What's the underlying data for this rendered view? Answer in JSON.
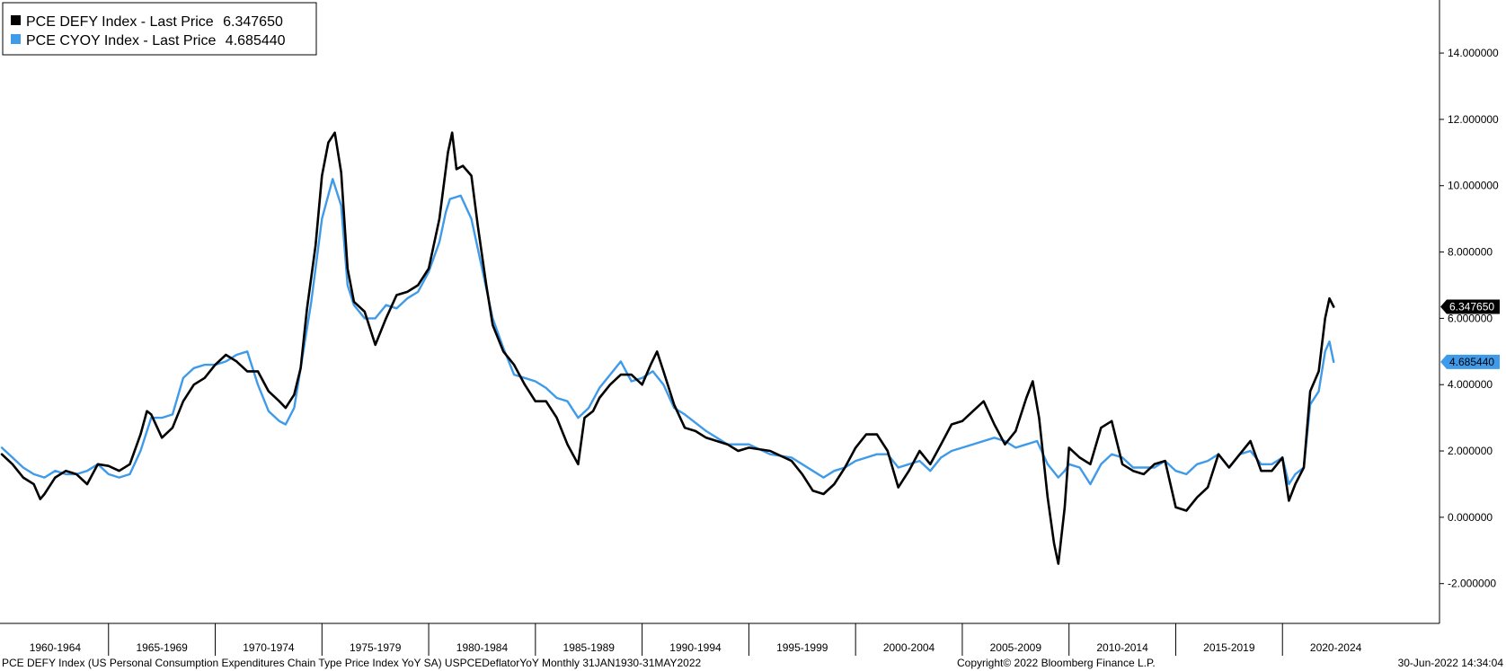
{
  "chart_data": {
    "type": "line",
    "x_unit": "year",
    "x_range": [
      1960,
      2025
    ],
    "ylim": [
      -3.2,
      15.6
    ],
    "y_ticks": [
      "14.000000",
      "12.000000",
      "10.000000",
      "8.000000",
      "6.000000",
      "4.000000",
      "2.000000",
      "0.000000",
      "-2.000000"
    ],
    "y_tick_values": [
      14,
      12,
      10,
      8,
      6,
      4,
      2,
      0,
      -2
    ],
    "x_tick_labels": [
      "1960-1964",
      "1965-1969",
      "1970-1974",
      "1975-1979",
      "1980-1984",
      "1985-1989",
      "1990-1994",
      "1995-1999",
      "2000-2004",
      "2005-2009",
      "2010-2014",
      "2015-2019",
      "2020-2024"
    ],
    "x_tick_starts": [
      1960,
      1965,
      1970,
      1975,
      1980,
      1985,
      1990,
      1995,
      2000,
      2005,
      2010,
      2015,
      2020
    ],
    "legend_position": "top-left",
    "series": [
      {
        "name": "PCE DEFY Index",
        "legend_label": "PCE DEFY Index - Last Price",
        "last_price": "6.347650",
        "color": "#000000",
        "points": [
          [
            1960.0,
            1.9
          ],
          [
            1960.5,
            1.6
          ],
          [
            1961.0,
            1.2
          ],
          [
            1961.5,
            1.0
          ],
          [
            1961.8,
            0.55
          ],
          [
            1962.0,
            0.7
          ],
          [
            1962.5,
            1.2
          ],
          [
            1963.0,
            1.4
          ],
          [
            1963.5,
            1.3
          ],
          [
            1964.0,
            1.0
          ],
          [
            1964.5,
            1.6
          ],
          [
            1965.0,
            1.55
          ],
          [
            1965.5,
            1.4
          ],
          [
            1966.0,
            1.6
          ],
          [
            1966.5,
            2.5
          ],
          [
            1966.8,
            3.2
          ],
          [
            1967.0,
            3.1
          ],
          [
            1967.5,
            2.4
          ],
          [
            1968.0,
            2.7
          ],
          [
            1968.5,
            3.5
          ],
          [
            1969.0,
            4.0
          ],
          [
            1969.5,
            4.2
          ],
          [
            1970.0,
            4.6
          ],
          [
            1970.5,
            4.9
          ],
          [
            1971.0,
            4.7
          ],
          [
            1971.5,
            4.4
          ],
          [
            1972.0,
            4.4
          ],
          [
            1972.5,
            3.8
          ],
          [
            1973.0,
            3.5
          ],
          [
            1973.3,
            3.3
          ],
          [
            1973.7,
            3.7
          ],
          [
            1974.0,
            4.5
          ],
          [
            1974.3,
            6.3
          ],
          [
            1974.7,
            8.2
          ],
          [
            1975.0,
            10.3
          ],
          [
            1975.3,
            11.3
          ],
          [
            1975.6,
            11.6
          ],
          [
            1975.9,
            10.4
          ],
          [
            1976.2,
            7.5
          ],
          [
            1976.5,
            6.5
          ],
          [
            1977.0,
            6.2
          ],
          [
            1977.5,
            5.2
          ],
          [
            1978.0,
            6.0
          ],
          [
            1978.5,
            6.7
          ],
          [
            1979.0,
            6.8
          ],
          [
            1979.5,
            7.0
          ],
          [
            1980.0,
            7.5
          ],
          [
            1980.5,
            9.0
          ],
          [
            1980.9,
            11.0
          ],
          [
            1981.1,
            11.6
          ],
          [
            1981.3,
            10.5
          ],
          [
            1981.6,
            10.6
          ],
          [
            1982.0,
            10.3
          ],
          [
            1982.3,
            8.8
          ],
          [
            1982.7,
            7.0
          ],
          [
            1983.0,
            5.8
          ],
          [
            1983.5,
            5.0
          ],
          [
            1984.0,
            4.6
          ],
          [
            1984.5,
            4.0
          ],
          [
            1985.0,
            3.5
          ],
          [
            1985.5,
            3.5
          ],
          [
            1986.0,
            3.0
          ],
          [
            1986.5,
            2.2
          ],
          [
            1987.0,
            1.6
          ],
          [
            1987.3,
            3.0
          ],
          [
            1987.7,
            3.2
          ],
          [
            1988.0,
            3.6
          ],
          [
            1988.5,
            4.0
          ],
          [
            1989.0,
            4.3
          ],
          [
            1989.5,
            4.3
          ],
          [
            1990.0,
            4.0
          ],
          [
            1990.4,
            4.6
          ],
          [
            1990.7,
            5.0
          ],
          [
            1991.0,
            4.4
          ],
          [
            1991.5,
            3.4
          ],
          [
            1992.0,
            2.7
          ],
          [
            1992.5,
            2.6
          ],
          [
            1993.0,
            2.4
          ],
          [
            1994.0,
            2.2
          ],
          [
            1994.5,
            2.0
          ],
          [
            1995.0,
            2.1
          ],
          [
            1996.0,
            2.0
          ],
          [
            1997.0,
            1.7
          ],
          [
            1997.5,
            1.3
          ],
          [
            1998.0,
            0.8
          ],
          [
            1998.5,
            0.7
          ],
          [
            1999.0,
            1.0
          ],
          [
            1999.5,
            1.5
          ],
          [
            2000.0,
            2.1
          ],
          [
            2000.5,
            2.5
          ],
          [
            2001.0,
            2.5
          ],
          [
            2001.5,
            2.0
          ],
          [
            2002.0,
            0.9
          ],
          [
            2002.5,
            1.4
          ],
          [
            2003.0,
            2.0
          ],
          [
            2003.5,
            1.6
          ],
          [
            2004.0,
            2.2
          ],
          [
            2004.5,
            2.8
          ],
          [
            2005.0,
            2.9
          ],
          [
            2005.5,
            3.2
          ],
          [
            2006.0,
            3.5
          ],
          [
            2006.5,
            2.8
          ],
          [
            2007.0,
            2.2
          ],
          [
            2007.5,
            2.6
          ],
          [
            2008.0,
            3.6
          ],
          [
            2008.3,
            4.1
          ],
          [
            2008.6,
            3.0
          ],
          [
            2009.0,
            0.6
          ],
          [
            2009.3,
            -0.8
          ],
          [
            2009.5,
            -1.4
          ],
          [
            2009.8,
            0.3
          ],
          [
            2010.0,
            2.1
          ],
          [
            2010.5,
            1.8
          ],
          [
            2011.0,
            1.6
          ],
          [
            2011.5,
            2.7
          ],
          [
            2012.0,
            2.9
          ],
          [
            2012.5,
            1.6
          ],
          [
            2013.0,
            1.4
          ],
          [
            2013.5,
            1.3
          ],
          [
            2014.0,
            1.6
          ],
          [
            2014.5,
            1.7
          ],
          [
            2015.0,
            0.3
          ],
          [
            2015.5,
            0.2
          ],
          [
            2016.0,
            0.6
          ],
          [
            2016.5,
            0.9
          ],
          [
            2017.0,
            1.9
          ],
          [
            2017.5,
            1.5
          ],
          [
            2018.0,
            1.9
          ],
          [
            2018.5,
            2.3
          ],
          [
            2019.0,
            1.4
          ],
          [
            2019.5,
            1.4
          ],
          [
            2020.0,
            1.8
          ],
          [
            2020.3,
            0.5
          ],
          [
            2020.6,
            1.0
          ],
          [
            2021.0,
            1.5
          ],
          [
            2021.3,
            3.8
          ],
          [
            2021.7,
            4.4
          ],
          [
            2022.0,
            6.0
          ],
          [
            2022.2,
            6.6
          ],
          [
            2022.4,
            6.35
          ]
        ]
      },
      {
        "name": "PCE CYOY Index",
        "legend_label": "PCE CYOY Index - Last Price",
        "last_price": "4.685440",
        "color": "#3f9be9",
        "points": [
          [
            1960.0,
            2.1
          ],
          [
            1960.5,
            1.8
          ],
          [
            1961.0,
            1.5
          ],
          [
            1961.5,
            1.3
          ],
          [
            1962.0,
            1.2
          ],
          [
            1962.5,
            1.4
          ],
          [
            1963.0,
            1.3
          ],
          [
            1963.5,
            1.3
          ],
          [
            1964.0,
            1.4
          ],
          [
            1964.5,
            1.6
          ],
          [
            1965.0,
            1.3
          ],
          [
            1965.5,
            1.2
          ],
          [
            1966.0,
            1.3
          ],
          [
            1966.5,
            2.0
          ],
          [
            1967.0,
            3.0
          ],
          [
            1967.5,
            3.0
          ],
          [
            1968.0,
            3.1
          ],
          [
            1968.5,
            4.2
          ],
          [
            1969.0,
            4.5
          ],
          [
            1969.5,
            4.6
          ],
          [
            1970.0,
            4.6
          ],
          [
            1970.5,
            4.7
          ],
          [
            1971.0,
            4.9
          ],
          [
            1971.5,
            5.0
          ],
          [
            1972.0,
            4.0
          ],
          [
            1972.5,
            3.2
          ],
          [
            1973.0,
            2.9
          ],
          [
            1973.3,
            2.8
          ],
          [
            1973.7,
            3.3
          ],
          [
            1974.0,
            4.5
          ],
          [
            1974.5,
            6.5
          ],
          [
            1975.0,
            9.0
          ],
          [
            1975.5,
            10.2
          ],
          [
            1975.9,
            9.4
          ],
          [
            1976.2,
            7.0
          ],
          [
            1976.5,
            6.4
          ],
          [
            1977.0,
            6.0
          ],
          [
            1977.5,
            6.0
          ],
          [
            1978.0,
            6.4
          ],
          [
            1978.5,
            6.3
          ],
          [
            1979.0,
            6.6
          ],
          [
            1979.5,
            6.8
          ],
          [
            1980.0,
            7.4
          ],
          [
            1980.5,
            8.3
          ],
          [
            1980.8,
            9.2
          ],
          [
            1981.0,
            9.6
          ],
          [
            1981.5,
            9.7
          ],
          [
            1982.0,
            9.0
          ],
          [
            1982.5,
            7.5
          ],
          [
            1983.0,
            6.0
          ],
          [
            1983.5,
            5.1
          ],
          [
            1984.0,
            4.3
          ],
          [
            1984.5,
            4.2
          ],
          [
            1985.0,
            4.1
          ],
          [
            1985.5,
            3.9
          ],
          [
            1986.0,
            3.6
          ],
          [
            1986.5,
            3.5
          ],
          [
            1987.0,
            3.0
          ],
          [
            1987.5,
            3.3
          ],
          [
            1988.0,
            3.9
          ],
          [
            1988.5,
            4.3
          ],
          [
            1989.0,
            4.7
          ],
          [
            1989.5,
            4.1
          ],
          [
            1990.0,
            4.2
          ],
          [
            1990.5,
            4.4
          ],
          [
            1991.0,
            4.0
          ],
          [
            1991.5,
            3.3
          ],
          [
            1992.0,
            3.1
          ],
          [
            1993.0,
            2.6
          ],
          [
            1994.0,
            2.2
          ],
          [
            1995.0,
            2.2
          ],
          [
            1996.0,
            1.9
          ],
          [
            1997.0,
            1.8
          ],
          [
            1998.0,
            1.4
          ],
          [
            1998.5,
            1.2
          ],
          [
            1999.0,
            1.4
          ],
          [
            1999.5,
            1.5
          ],
          [
            2000.0,
            1.7
          ],
          [
            2001.0,
            1.9
          ],
          [
            2001.5,
            1.9
          ],
          [
            2002.0,
            1.5
          ],
          [
            2002.5,
            1.6
          ],
          [
            2003.0,
            1.7
          ],
          [
            2003.5,
            1.4
          ],
          [
            2004.0,
            1.8
          ],
          [
            2004.5,
            2.0
          ],
          [
            2005.0,
            2.1
          ],
          [
            2006.0,
            2.3
          ],
          [
            2006.5,
            2.4
          ],
          [
            2007.0,
            2.3
          ],
          [
            2007.5,
            2.1
          ],
          [
            2008.0,
            2.2
          ],
          [
            2008.5,
            2.3
          ],
          [
            2009.0,
            1.6
          ],
          [
            2009.5,
            1.2
          ],
          [
            2009.8,
            1.4
          ],
          [
            2010.0,
            1.6
          ],
          [
            2010.5,
            1.5
          ],
          [
            2011.0,
            1.0
          ],
          [
            2011.5,
            1.6
          ],
          [
            2012.0,
            1.9
          ],
          [
            2012.5,
            1.8
          ],
          [
            2013.0,
            1.5
          ],
          [
            2013.5,
            1.5
          ],
          [
            2014.0,
            1.5
          ],
          [
            2014.5,
            1.7
          ],
          [
            2015.0,
            1.4
          ],
          [
            2015.5,
            1.3
          ],
          [
            2016.0,
            1.6
          ],
          [
            2016.5,
            1.7
          ],
          [
            2017.0,
            1.9
          ],
          [
            2017.5,
            1.5
          ],
          [
            2018.0,
            1.9
          ],
          [
            2018.5,
            2.0
          ],
          [
            2019.0,
            1.6
          ],
          [
            2019.5,
            1.6
          ],
          [
            2020.0,
            1.8
          ],
          [
            2020.3,
            1.0
          ],
          [
            2020.6,
            1.3
          ],
          [
            2021.0,
            1.5
          ],
          [
            2021.3,
            3.4
          ],
          [
            2021.7,
            3.8
          ],
          [
            2022.0,
            5.0
          ],
          [
            2022.2,
            5.3
          ],
          [
            2022.4,
            4.685
          ]
        ]
      }
    ]
  },
  "footer": {
    "description": "PCE DEFY Index (US Personal Consumption Expenditures Chain Type Price Index YoY SA) USPCEDeflatorYoY  Monthly 31JAN1930-31MAY2022",
    "copyright": "Copyright© 2022 Bloomberg Finance L.P.",
    "timestamp": "30-Jun-2022 14:34:04"
  }
}
